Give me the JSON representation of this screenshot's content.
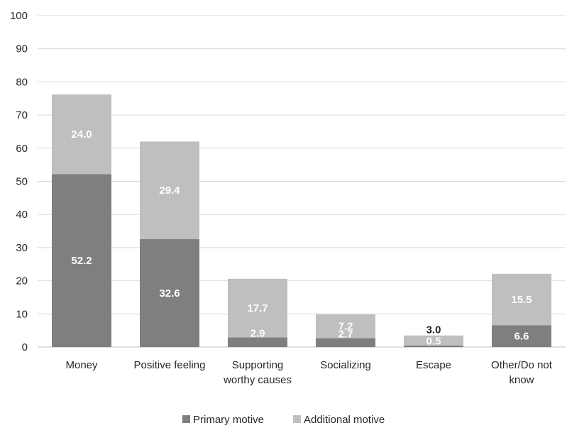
{
  "chart_data": {
    "type": "bar",
    "stacked": true,
    "categories": [
      "Money",
      "Positive feeling",
      "Supporting worthy causes",
      "Socializing",
      "Escape",
      "Other/Do not know"
    ],
    "category_lines": [
      [
        "Money"
      ],
      [
        "Positive feeling"
      ],
      [
        "Supporting",
        "worthy causes"
      ],
      [
        "Socializing"
      ],
      [
        "Escape"
      ],
      [
        "Other/Do not",
        "know"
      ]
    ],
    "series": [
      {
        "name": "Primary motive",
        "values": [
          52.2,
          32.6,
          2.9,
          2.7,
          0.5,
          6.6
        ],
        "color": "#7f7f7f"
      },
      {
        "name": "Additional motive",
        "values": [
          24.0,
          29.4,
          17.7,
          7.2,
          3.0,
          15.5
        ],
        "color": "#bfbfbf"
      }
    ],
    "data_labels": {
      "Primary motive": [
        "52.2",
        "32.6",
        "2.9",
        "2.7",
        "0.5",
        "6.6"
      ],
      "Additional motive": [
        "24.0",
        "29.4",
        "17.7",
        "7.2",
        "3.0",
        "15.5"
      ]
    },
    "title": "",
    "xlabel": "",
    "ylabel": "",
    "ylim": [
      0,
      100
    ],
    "yticks": [
      0,
      10,
      20,
      30,
      40,
      50,
      60,
      70,
      80,
      90,
      100
    ],
    "grid": true,
    "legend": "bottom",
    "gridline_color": "#d9d9d9",
    "label_color": "#ffffff",
    "outside_label_color": "#262626"
  }
}
